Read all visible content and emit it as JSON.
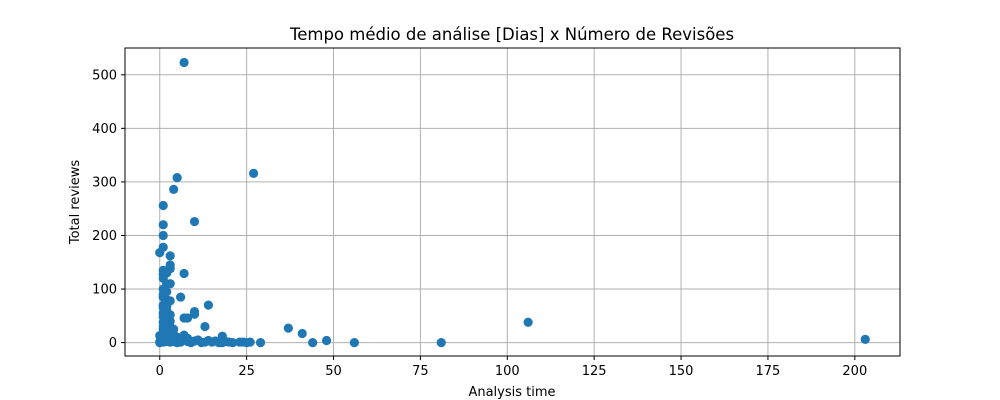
{
  "chart_data": {
    "type": "scatter",
    "title": "Tempo médio de análise [Dias] x Número de Revisões",
    "xlabel": "Analysis time",
    "ylabel": "Total reviews",
    "xlim": [
      -10,
      213
    ],
    "ylim": [
      -25,
      550
    ],
    "xticks": [
      0,
      25,
      50,
      75,
      100,
      125,
      150,
      175,
      200
    ],
    "yticks": [
      0,
      100,
      200,
      300,
      400,
      500
    ],
    "grid": true,
    "color": "#1f77b4",
    "points": [
      [
        7,
        523
      ],
      [
        5,
        308
      ],
      [
        4,
        286
      ],
      [
        27,
        316
      ],
      [
        10,
        226
      ],
      [
        1,
        256
      ],
      [
        1,
        220
      ],
      [
        1,
        200
      ],
      [
        0,
        168
      ],
      [
        1,
        178
      ],
      [
        3,
        162
      ],
      [
        3,
        145
      ],
      [
        3,
        138
      ],
      [
        1,
        135
      ],
      [
        1,
        128
      ],
      [
        7,
        129
      ],
      [
        1,
        120
      ],
      [
        2,
        110
      ],
      [
        3,
        110
      ],
      [
        1,
        100
      ],
      [
        2,
        95
      ],
      [
        6,
        85
      ],
      [
        1,
        85
      ],
      [
        2,
        80
      ],
      [
        3,
        78
      ],
      [
        14,
        70
      ],
      [
        10,
        58
      ],
      [
        10,
        53
      ],
      [
        1,
        65
      ],
      [
        2,
        60
      ],
      [
        3,
        52
      ],
      [
        1,
        55
      ],
      [
        7,
        46
      ],
      [
        8,
        46
      ],
      [
        1,
        48
      ],
      [
        2,
        42
      ],
      [
        3,
        40
      ],
      [
        13,
        30
      ],
      [
        1,
        38
      ],
      [
        2,
        35
      ],
      [
        3,
        30
      ],
      [
        4,
        25
      ],
      [
        1,
        25
      ],
      [
        2,
        20
      ],
      [
        3,
        18
      ],
      [
        4,
        15
      ],
      [
        7,
        14
      ],
      [
        18,
        12
      ],
      [
        0,
        13
      ],
      [
        1,
        12
      ],
      [
        2,
        10
      ],
      [
        5,
        10
      ],
      [
        8,
        8
      ],
      [
        11,
        5
      ],
      [
        14,
        4
      ],
      [
        16,
        3
      ],
      [
        19,
        2
      ],
      [
        20,
        1
      ],
      [
        23,
        1
      ],
      [
        24,
        1
      ],
      [
        26,
        1
      ],
      [
        29,
        0
      ],
      [
        0,
        2
      ],
      [
        1,
        3
      ],
      [
        2,
        5
      ],
      [
        3,
        4
      ],
      [
        4,
        2
      ],
      [
        6,
        1
      ],
      [
        9,
        0
      ],
      [
        12,
        0
      ],
      [
        15,
        1
      ],
      [
        17,
        0
      ],
      [
        37,
        27
      ],
      [
        41,
        17
      ],
      [
        44,
        0
      ],
      [
        48,
        4
      ],
      [
        56,
        0
      ],
      [
        81,
        0
      ],
      [
        106,
        38
      ],
      [
        203,
        6
      ],
      [
        0,
        0
      ],
      [
        1,
        1
      ],
      [
        2,
        2
      ],
      [
        3,
        1
      ],
      [
        5,
        0
      ],
      [
        1,
        70
      ],
      [
        2,
        68
      ],
      [
        1,
        90
      ],
      [
        2,
        130
      ],
      [
        4,
        8
      ],
      [
        6,
        5
      ],
      [
        8,
        2
      ],
      [
        10,
        3
      ],
      [
        13,
        1
      ],
      [
        18,
        0
      ],
      [
        21,
        0
      ],
      [
        25,
        0
      ],
      [
        1,
        30
      ],
      [
        2,
        28
      ],
      [
        3,
        22
      ]
    ]
  }
}
